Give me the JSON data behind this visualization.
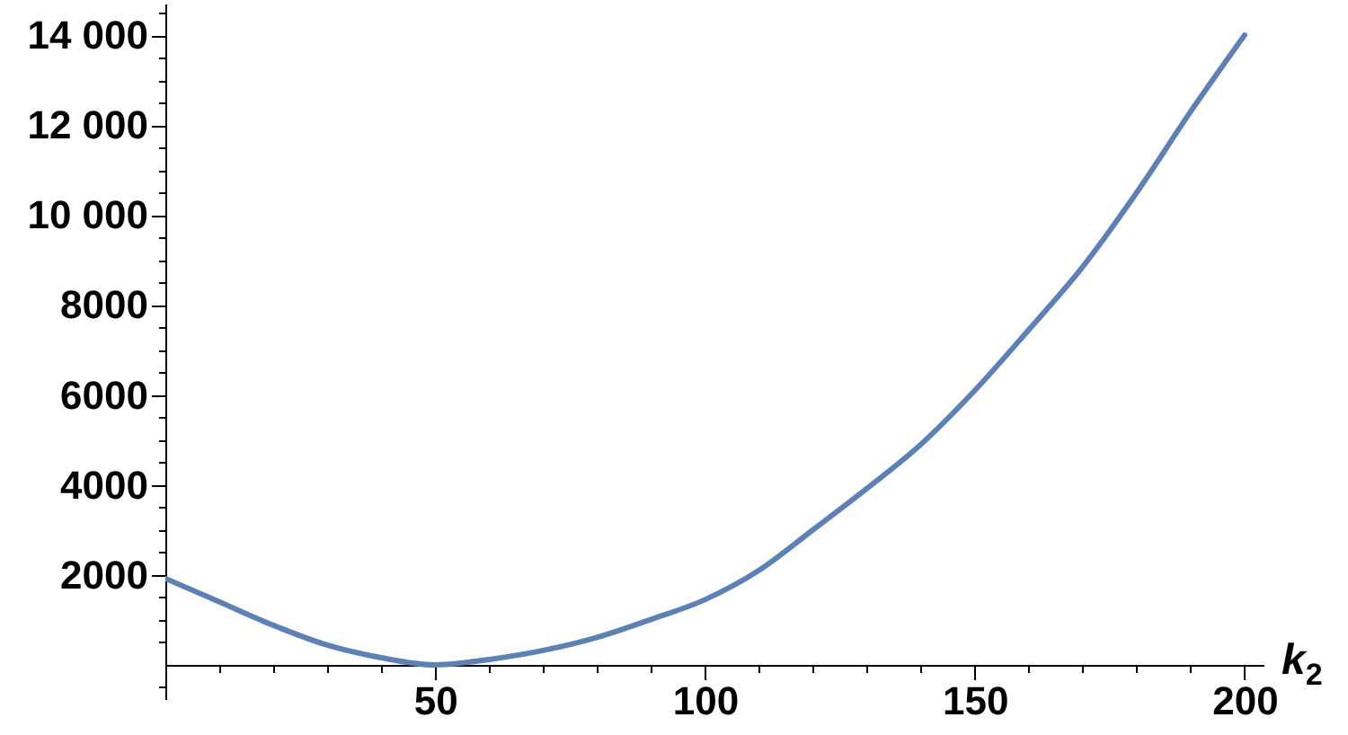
{
  "chart_data": {
    "type": "line",
    "xlabel": "k$_{2}$",
    "x": [
      0,
      10,
      20,
      30,
      40,
      50,
      60,
      70,
      80,
      90,
      100,
      110,
      120,
      130,
      140,
      150,
      160,
      170,
      180,
      190,
      200
    ],
    "series": [
      {
        "color": "#5e81b5",
        "values": [
          1920,
          1400,
          880,
          440,
          160,
          0,
          120,
          320,
          610,
          1010,
          1450,
          2100,
          3000,
          3920,
          4900,
          6100,
          7450,
          8850,
          10500,
          12300,
          14000
        ]
      }
    ],
    "xlim": [
      0,
      203.5
    ],
    "ylim": [
      -760,
      14700
    ],
    "xticks": [
      {
        "value": 10,
        "label": null
      },
      {
        "value": 20,
        "label": null
      },
      {
        "value": 30,
        "label": null
      },
      {
        "value": 40,
        "label": null
      },
      50,
      {
        "value": 60,
        "label": null
      },
      {
        "value": 70,
        "label": null
      },
      {
        "value": 80,
        "label": null
      },
      {
        "value": 90,
        "label": null
      },
      100,
      {
        "value": 110,
        "label": null
      },
      {
        "value": 120,
        "label": null
      },
      {
        "value": 130,
        "label": null
      },
      {
        "value": 140,
        "label": null
      },
      150,
      {
        "value": 160,
        "label": null
      },
      {
        "value": 170,
        "label": null
      },
      {
        "value": 180,
        "label": null
      },
      {
        "value": 190,
        "label": null
      },
      200
    ],
    "yticks": [
      {
        "value": -500,
        "label": null
      },
      {
        "value": 500,
        "label": null
      },
      {
        "value": 1000,
        "label": null
      },
      {
        "value": 1500,
        "label": null
      },
      2000,
      {
        "value": 2500,
        "label": null
      },
      {
        "value": 3000,
        "label": null
      },
      {
        "value": 3500,
        "label": null
      },
      4000,
      {
        "value": 4500,
        "label": null
      },
      {
        "value": 5000,
        "label": null
      },
      {
        "value": 5500,
        "label": null
      },
      6000,
      {
        "value": 6500,
        "label": null
      },
      {
        "value": 7000,
        "label": null
      },
      {
        "value": 7500,
        "label": null
      },
      8000,
      {
        "value": 8500,
        "label": null
      },
      {
        "value": 9000,
        "label": null
      },
      {
        "value": 9500,
        "label": null
      },
      {
        "value": 10000,
        "label": "10 000"
      },
      {
        "value": 10500,
        "label": null
      },
      {
        "value": 11000,
        "label": null
      },
      {
        "value": 11500,
        "label": null
      },
      {
        "value": 12000,
        "label": "12 000"
      },
      {
        "value": 12500,
        "label": null
      },
      {
        "value": 13000,
        "label": null
      },
      {
        "value": 13500,
        "label": null
      },
      {
        "value": 14000,
        "label": "14 000"
      },
      {
        "value": 14500,
        "label": null
      }
    ],
    "grid": false,
    "marker": "none",
    "line_style": "solid"
  }
}
